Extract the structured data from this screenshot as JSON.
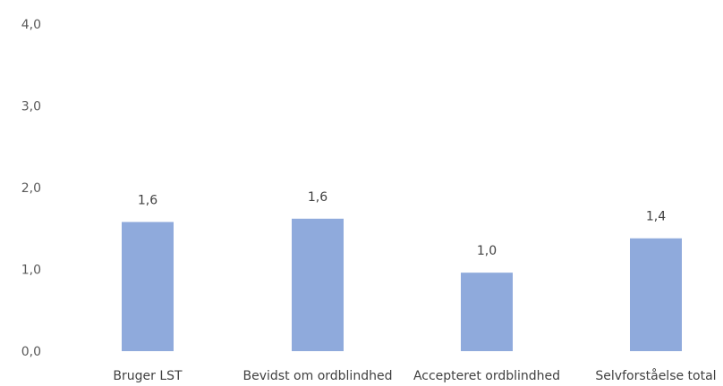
{
  "chart_data": {
    "type": "bar",
    "categories": [
      "Bruger LST",
      "Bevidst om ordblindhed",
      "Accepteret ordblindhed",
      "Selvforståelse total"
    ],
    "values": [
      1.58,
      1.62,
      0.96,
      1.38
    ],
    "data_labels": [
      "1,6",
      "1,6",
      "1,0",
      "1,4"
    ],
    "y_ticks": [
      "0,0",
      "1,0",
      "2,0",
      "3,0",
      "4,0"
    ],
    "ylim": [
      0,
      4
    ],
    "grid": false,
    "legend": "none",
    "bar_color": "#8faadc",
    "title": "",
    "xlabel": "",
    "ylabel": ""
  }
}
